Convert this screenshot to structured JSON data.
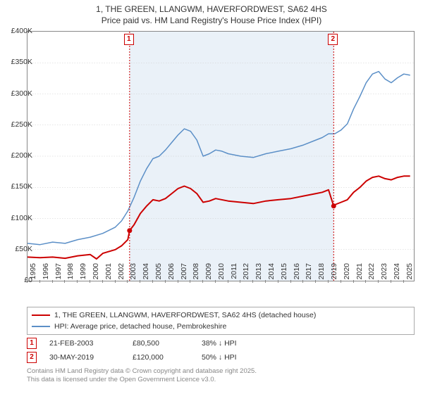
{
  "title": {
    "line1": "1, THE GREEN, LLANGWM, HAVERFORDWEST, SA62 4HS",
    "line2": "Price paid vs. HM Land Registry's House Price Index (HPI)",
    "fontsize": 12,
    "color": "#333333"
  },
  "chart": {
    "type": "line",
    "background_color": "#ffffff",
    "shade_color": "#eaf1f8",
    "grid_color": "#cccccc",
    "axis_color": "#888888",
    "x": {
      "min": 1995,
      "max": 2025.8,
      "ticks": [
        1995,
        1996,
        1997,
        1998,
        1999,
        2000,
        2001,
        2002,
        2003,
        2004,
        2005,
        2006,
        2007,
        2008,
        2009,
        2010,
        2011,
        2012,
        2013,
        2014,
        2015,
        2016,
        2017,
        2018,
        2019,
        2020,
        2021,
        2022,
        2023,
        2024,
        2025
      ]
    },
    "y": {
      "min": 0,
      "max": 400000,
      "ticks": [
        0,
        50000,
        100000,
        150000,
        200000,
        250000,
        300000,
        350000,
        400000
      ],
      "labels": [
        "£0",
        "£50K",
        "£100K",
        "£150K",
        "£200K",
        "£250K",
        "£300K",
        "£350K",
        "£400K"
      ]
    },
    "series": {
      "price_paid": {
        "label": "1, THE GREEN, LLANGWM, HAVERFORDWEST, SA62 4HS (detached house)",
        "color": "#cc0000",
        "line_width": 2,
        "data": [
          [
            1995,
            38000
          ],
          [
            1996,
            37000
          ],
          [
            1997,
            38000
          ],
          [
            1998,
            36000
          ],
          [
            1999,
            40000
          ],
          [
            2000,
            42000
          ],
          [
            2000.5,
            35000
          ],
          [
            2001,
            44000
          ],
          [
            2002,
            50000
          ],
          [
            2002.5,
            56000
          ],
          [
            2003,
            66000
          ],
          [
            2003.14,
            80500
          ],
          [
            2003.5,
            90000
          ],
          [
            2004,
            108000
          ],
          [
            2004.5,
            120000
          ],
          [
            2005,
            130000
          ],
          [
            2005.5,
            128000
          ],
          [
            2006,
            132000
          ],
          [
            2006.5,
            140000
          ],
          [
            2007,
            148000
          ],
          [
            2007.5,
            152000
          ],
          [
            2008,
            148000
          ],
          [
            2008.5,
            140000
          ],
          [
            2009,
            126000
          ],
          [
            2009.5,
            128000
          ],
          [
            2010,
            132000
          ],
          [
            2011,
            128000
          ],
          [
            2012,
            126000
          ],
          [
            2013,
            124000
          ],
          [
            2014,
            128000
          ],
          [
            2015,
            130000
          ],
          [
            2016,
            132000
          ],
          [
            2017,
            136000
          ],
          [
            2018,
            140000
          ],
          [
            2018.5,
            142000
          ],
          [
            2019,
            146000
          ],
          [
            2019.41,
            120000
          ],
          [
            2019.5,
            122000
          ],
          [
            2020,
            126000
          ],
          [
            2020.5,
            130000
          ],
          [
            2021,
            142000
          ],
          [
            2021.5,
            150000
          ],
          [
            2022,
            160000
          ],
          [
            2022.5,
            166000
          ],
          [
            2023,
            168000
          ],
          [
            2023.5,
            164000
          ],
          [
            2024,
            162000
          ],
          [
            2024.5,
            166000
          ],
          [
            2025,
            168000
          ],
          [
            2025.5,
            168000
          ]
        ]
      },
      "hpi": {
        "label": "HPI: Average price, detached house, Pembrokeshire",
        "color": "#5b8fc7",
        "line_width": 1.5,
        "data": [
          [
            1995,
            60000
          ],
          [
            1996,
            58000
          ],
          [
            1997,
            62000
          ],
          [
            1998,
            60000
          ],
          [
            1999,
            66000
          ],
          [
            2000,
            70000
          ],
          [
            2001,
            76000
          ],
          [
            2002,
            86000
          ],
          [
            2002.5,
            96000
          ],
          [
            2003,
            112000
          ],
          [
            2003.5,
            134000
          ],
          [
            2004,
            160000
          ],
          [
            2004.5,
            180000
          ],
          [
            2005,
            196000
          ],
          [
            2005.5,
            200000
          ],
          [
            2006,
            210000
          ],
          [
            2006.5,
            222000
          ],
          [
            2007,
            234000
          ],
          [
            2007.5,
            244000
          ],
          [
            2008,
            240000
          ],
          [
            2008.5,
            226000
          ],
          [
            2009,
            200000
          ],
          [
            2009.5,
            204000
          ],
          [
            2010,
            210000
          ],
          [
            2010.5,
            208000
          ],
          [
            2011,
            204000
          ],
          [
            2012,
            200000
          ],
          [
            2013,
            198000
          ],
          [
            2014,
            204000
          ],
          [
            2015,
            208000
          ],
          [
            2016,
            212000
          ],
          [
            2017,
            218000
          ],
          [
            2018,
            226000
          ],
          [
            2018.5,
            230000
          ],
          [
            2019,
            236000
          ],
          [
            2019.5,
            236000
          ],
          [
            2020,
            242000
          ],
          [
            2020.5,
            252000
          ],
          [
            2021,
            276000
          ],
          [
            2021.5,
            296000
          ],
          [
            2022,
            318000
          ],
          [
            2022.5,
            332000
          ],
          [
            2023,
            336000
          ],
          [
            2023.5,
            324000
          ],
          [
            2024,
            318000
          ],
          [
            2024.5,
            326000
          ],
          [
            2025,
            332000
          ],
          [
            2025.5,
            330000
          ]
        ]
      }
    },
    "markers": [
      {
        "n": "1",
        "x": 2003.14,
        "y": 80500
      },
      {
        "n": "2",
        "x": 2019.41,
        "y": 120000
      }
    ],
    "shade_ranges": [
      [
        2003.14,
        2019.41
      ]
    ]
  },
  "legend": {
    "s1": "1, THE GREEN, LLANGWM, HAVERFORDWEST, SA62 4HS (detached house)",
    "s2": "HPI: Average price, detached house, Pembrokeshire"
  },
  "events": [
    {
      "n": "1",
      "date": "21-FEB-2003",
      "price": "£80,500",
      "diff": "38% ↓ HPI"
    },
    {
      "n": "2",
      "date": "30-MAY-2019",
      "price": "£120,000",
      "diff": "50% ↓ HPI"
    }
  ],
  "footer": {
    "l1": "Contains HM Land Registry data © Crown copyright and database right 2025.",
    "l2": "This data is licensed under the Open Government Licence v3.0."
  }
}
